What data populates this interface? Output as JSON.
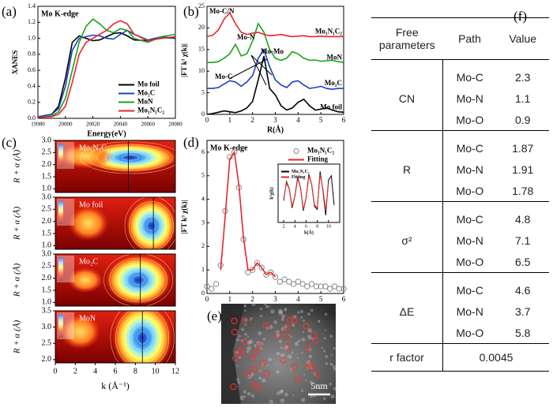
{
  "panel_labels": [
    "(a)",
    "(b)",
    "(c)",
    "(d)",
    "(e)",
    "(f)"
  ],
  "chart_data": [
    {
      "type": "line",
      "title": "Mo K-edge",
      "xlabel": "Energy(eV)",
      "ylabel": "XANES",
      "x": [
        19980,
        19990,
        19995,
        20000,
        20005,
        20010,
        20015,
        20020,
        20025,
        20030,
        20035,
        20040,
        20045,
        20050,
        20060,
        20070,
        20080
      ],
      "xlim": [
        19980,
        20080
      ],
      "ylim": [
        0,
        1.4
      ],
      "xticks": [
        19980,
        20000,
        20020,
        20040,
        20060,
        20080
      ],
      "yticks": [
        {
          "value": 0,
          "label": "0.0"
        },
        {
          "value": 0.2,
          "label": "0.2"
        },
        {
          "value": 0.4,
          "label": "0.4"
        },
        {
          "value": 0.6,
          "label": "0.6"
        },
        {
          "value": 0.8,
          "label": "0.8"
        },
        {
          "value": 1,
          "label": "1.0"
        },
        {
          "value": 1.2,
          "label": "1.2"
        },
        {
          "value": 1.4,
          "label": "1.4"
        }
      ],
      "legend": "lower right",
      "series": [
        {
          "name": "Mo foil",
          "color": "#000000",
          "values": [
            0.02,
            0.05,
            0.15,
            0.5,
            0.95,
            1.03,
            1.0,
            0.97,
            0.98,
            1.02,
            1.06,
            1.07,
            1.03,
            0.98,
            0.97,
            1.01,
            1.0
          ]
        },
        {
          "name": "Mo₂C",
          "color": "#1f3fbf",
          "values": [
            0.02,
            0.05,
            0.12,
            0.4,
            0.85,
            1.0,
            1.02,
            1.04,
            1.03,
            1.0,
            0.99,
            1.05,
            1.1,
            1.05,
            0.98,
            1.02,
            1.0
          ]
        },
        {
          "name": "MoN",
          "color": "#1aa31a",
          "values": [
            0.01,
            0.03,
            0.08,
            0.25,
            0.6,
            0.95,
            1.15,
            1.24,
            1.18,
            1.1,
            1.07,
            1.12,
            1.1,
            1.0,
            0.95,
            1.02,
            1.05
          ]
        },
        {
          "name": "Mo₁N₁C₂",
          "color": "#e8262a",
          "values": [
            0.01,
            0.02,
            0.05,
            0.15,
            0.45,
            0.8,
            0.95,
            1.0,
            1.05,
            1.1,
            1.18,
            1.22,
            1.18,
            1.05,
            0.97,
            1.0,
            1.02
          ]
        }
      ]
    },
    {
      "type": "line",
      "xlabel": "R(Å)",
      "ylabel": "|FT k³ χ(k)|",
      "x": [
        0,
        0.25,
        0.5,
        0.75,
        1,
        1.25,
        1.5,
        1.75,
        2,
        2.25,
        2.5,
        2.75,
        3,
        3.25,
        3.5,
        3.75,
        4,
        4.25,
        4.5,
        4.75,
        5,
        5.25,
        5.5,
        5.75,
        6
      ],
      "xlim": [
        0,
        6
      ],
      "ylim": [
        0,
        25
      ],
      "xticks": [
        0,
        1,
        2,
        3,
        4,
        5,
        6
      ],
      "yticks": [
        0,
        5,
        10,
        15,
        20,
        25
      ],
      "legend": "inline",
      "annotations": [
        "Mo-C/N",
        "Mo-N",
        "Mo-Mo",
        "Mo-C"
      ],
      "series": [
        {
          "name": "Mo foil",
          "color": "#000000",
          "values": [
            0,
            0.2,
            0.5,
            0.8,
            0.6,
            0.4,
            0.8,
            1.5,
            3,
            8,
            13.5,
            6,
            4.5,
            2,
            1,
            1.5,
            2.8,
            3.5,
            2,
            1,
            1.2,
            1.5,
            1,
            0.6,
            0.5
          ]
        },
        {
          "name": "Mo₂C",
          "color": "#1f3fbf",
          "values": [
            6,
            6,
            6.2,
            7,
            7.8,
            7.5,
            6.5,
            7.5,
            9,
            13,
            15,
            11,
            8,
            6.8,
            6.2,
            7.5,
            7.8,
            6.8,
            6,
            6.2,
            6.5,
            6,
            5.8,
            6,
            6
          ]
        },
        {
          "name": "MoN",
          "color": "#1aa31a",
          "values": [
            12,
            12,
            12.2,
            13,
            14,
            16.2,
            13.5,
            14,
            17,
            21,
            19,
            15,
            13,
            12.5,
            13,
            14.5,
            14,
            13,
            12.5,
            12.6,
            12.3,
            12.4,
            12.5,
            12.2,
            12
          ]
        },
        {
          "name": "Mo₁N₁C₂",
          "color": "#e8262a",
          "values": [
            18,
            18.3,
            19.5,
            22,
            23.5,
            21,
            19,
            18.5,
            18.8,
            19,
            18.5,
            18.2,
            18.3,
            18.5,
            18.2,
            18,
            18.1,
            18.2,
            18,
            18,
            18.1,
            18,
            18,
            18,
            18
          ]
        }
      ]
    },
    {
      "type": "line",
      "title": "Mo K-edge",
      "xlabel": "R(Å)",
      "ylabel": "|FT k³ χ(k)|",
      "xlim": [
        0,
        6
      ],
      "ylim": [
        0,
        6.5
      ],
      "xticks": [
        0,
        1,
        2,
        3,
        4,
        5,
        6
      ],
      "yticks": [
        0,
        1,
        2,
        3,
        4,
        5,
        6
      ],
      "legend": "upper right",
      "series": [
        {
          "name": "Mo₁N₁C₂",
          "type": "scatter",
          "color": "#888888",
          "x": [
            0,
            0.2,
            0.4,
            0.6,
            0.8,
            1,
            1.2,
            1.4,
            1.6,
            1.8,
            2,
            2.2,
            2.4,
            2.6,
            2.8,
            3,
            3.2,
            3.4,
            3.6,
            3.8,
            4,
            4.2,
            4.4,
            4.6,
            4.8,
            5,
            5.2,
            5.4,
            5.6,
            5.8,
            6
          ],
          "values": [
            0.3,
            0.2,
            0.4,
            1.2,
            3.5,
            5.8,
            6.0,
            4.5,
            2.3,
            0.9,
            1.0,
            1.3,
            1.1,
            0.8,
            0.9,
            0.7,
            0.5,
            0.6,
            0.5,
            0.4,
            0.5,
            0.4,
            0.3,
            0.4,
            0.3,
            0.3,
            0.3,
            0.2,
            0.3,
            0.2,
            0.2
          ]
        },
        {
          "name": "Fitting",
          "type": "line",
          "color": "#e8262a",
          "x": [
            0.6,
            0.8,
            1,
            1.2,
            1.4,
            1.6,
            1.8,
            2,
            2.2,
            2.4,
            2.6,
            2.8,
            3
          ],
          "values": [
            1.0,
            3.3,
            5.7,
            6.0,
            4.6,
            2.4,
            1.0,
            1.0,
            1.3,
            1.1,
            0.8,
            0.9,
            0.7
          ]
        }
      ]
    },
    {
      "type": "line",
      "xlabel": "k(Å)",
      "ylabel": "k³χ(k)",
      "xlim": [
        1,
        12
      ],
      "ylim": [
        -2,
        2
      ],
      "xticks": [
        2,
        4,
        6,
        8,
        10
      ],
      "legend": "upper left",
      "series": [
        {
          "name": "Mo₁N₁C₂",
          "type": "line",
          "color": "#000000",
          "x": [
            2,
            2.5,
            3,
            3.5,
            4,
            4.5,
            5,
            5.5,
            6,
            6.5,
            7,
            7.5,
            8,
            8.5,
            9,
            9.5,
            10,
            10.5,
            11
          ],
          "values": [
            -0.5,
            0.8,
            0.3,
            -1.0,
            -0.2,
            1.1,
            0.4,
            -1.2,
            -0.3,
            1.3,
            0.6,
            -0.9,
            -1.1,
            1.5,
            0.2,
            -1.5,
            0.9,
            1.2,
            -0.8
          ]
        },
        {
          "name": "Fitting",
          "type": "line",
          "color": "#e8262a",
          "x": [
            2,
            2.5,
            3,
            3.5,
            4,
            4.5,
            5,
            5.5,
            6,
            6.5,
            7,
            7.5,
            8,
            8.5,
            9,
            9.5,
            10
          ],
          "values": [
            -0.4,
            0.7,
            0.3,
            -0.9,
            -0.2,
            1.0,
            0.4,
            -1.1,
            -0.3,
            1.2,
            0.6,
            -0.8,
            -1.0,
            1.3,
            0.3,
            -1.2,
            0.7
          ]
        }
      ]
    }
  ],
  "wavelet": {
    "xlabel": "k (Å⁻¹)",
    "ylabel": "R + α (Å)",
    "xlim": [
      0,
      12
    ],
    "xticks": [
      0,
      2,
      4,
      6,
      8,
      10,
      12
    ],
    "panels": [
      {
        "label": "Mo₁N₁C₂",
        "ylim": [
          0.85,
          3.0
        ],
        "yticks": [
          {
            "value": 1,
            "label": "1.0"
          },
          {
            "value": 1.5,
            "label": "1.5"
          },
          {
            "value": 2,
            "label": "2.0"
          },
          {
            "value": 2.5,
            "label": "2.5"
          },
          {
            "value": 3,
            "label": "3.0"
          }
        ]
      },
      {
        "label": "Mo foil",
        "ylim": [
          0.85,
          3.0
        ],
        "yticks": [
          {
            "value": 1,
            "label": "1.0"
          },
          {
            "value": 1.5,
            "label": "1.5"
          },
          {
            "value": 2,
            "label": "2.0"
          },
          {
            "value": 2.5,
            "label": "2.5"
          },
          {
            "value": 3,
            "label": "3.0"
          }
        ]
      },
      {
        "label": "Mo₂C",
        "ylim": [
          0.85,
          3.0
        ],
        "yticks": [
          {
            "value": 1,
            "label": "1.0"
          },
          {
            "value": 1.5,
            "label": "1.5"
          },
          {
            "value": 2,
            "label": "2.0"
          },
          {
            "value": 2.5,
            "label": "2.5"
          },
          {
            "value": 3,
            "label": "3.0"
          }
        ]
      },
      {
        "label": "MoN",
        "ylim": [
          1.9,
          3.5
        ],
        "yticks": [
          {
            "value": 2,
            "label": "2.0"
          },
          {
            "value": 2.5,
            "label": "2.5"
          },
          {
            "value": 3,
            "label": "3.0"
          },
          {
            "value": 3.5,
            "label": "3.5"
          }
        ]
      }
    ]
  },
  "image": {
    "scale_bar": "5nm"
  },
  "table": {
    "header": [
      "Free parameters",
      "Path",
      "Value"
    ],
    "groups": [
      {
        "parameter": "CN",
        "rows": [
          [
            "Mo-C",
            2.3
          ],
          [
            "Mo-N",
            1.1
          ],
          [
            "Mo-O",
            0.9
          ]
        ]
      },
      {
        "parameter": "R",
        "rows": [
          [
            "Mo-C",
            1.87
          ],
          [
            "Mo-N",
            1.91
          ],
          [
            "Mo-O",
            1.78
          ]
        ]
      },
      {
        "parameter": "σ²",
        "rows": [
          [
            "Mo-C",
            4.8
          ],
          [
            "Mo-N",
            7.1
          ],
          [
            "Mo-O",
            6.5
          ]
        ]
      },
      {
        "parameter": "ΔE",
        "rows": [
          [
            "Mo-C",
            4.6
          ],
          [
            "Mo-N",
            3.7
          ],
          [
            "Mo-O",
            5.8
          ]
        ]
      }
    ],
    "footer": [
      "r factor",
      0.0045
    ]
  }
}
